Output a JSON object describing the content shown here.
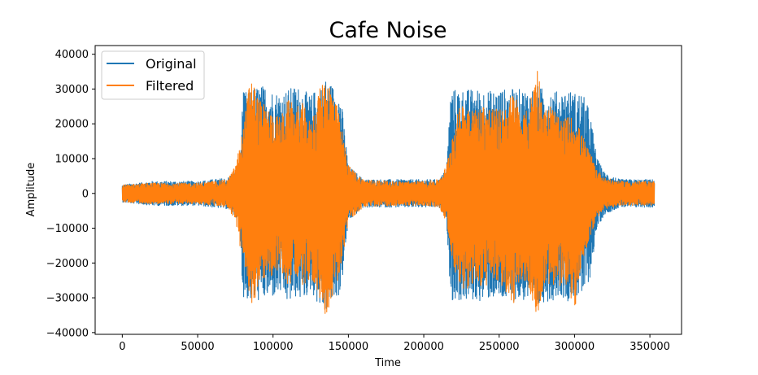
{
  "chart_data": {
    "type": "line",
    "title": "Cafe Noise",
    "xlabel": "Time",
    "ylabel": "Amplitude",
    "xlim": [
      -18000,
      371000
    ],
    "ylim": [
      -40500,
      42500
    ],
    "x_ticks": [
      0,
      50000,
      100000,
      150000,
      200000,
      250000,
      300000,
      350000
    ],
    "x_tick_labels": [
      "0",
      "50000",
      "100000",
      "150000",
      "200000",
      "250000",
      "300000",
      "350000"
    ],
    "y_ticks": [
      -40000,
      -30000,
      -20000,
      -10000,
      0,
      10000,
      20000,
      30000,
      40000
    ],
    "y_tick_labels": [
      "−40000",
      "−30000",
      "−20000",
      "−10000",
      "0",
      "10000",
      "20000",
      "30000",
      "40000"
    ],
    "grid": false,
    "legend_position": "top-left",
    "x_range": [
      0,
      353000
    ],
    "series": [
      {
        "name": "Original",
        "color": "#1f77b4",
        "envelope": {
          "x": [
            0,
            20000,
            50000,
            70000,
            78000,
            80000,
            85000,
            90000,
            95000,
            100000,
            105000,
            110000,
            115000,
            120000,
            125000,
            130000,
            135000,
            140000,
            145000,
            150000,
            160000,
            180000,
            200000,
            210000,
            215000,
            218000,
            222000,
            228000,
            235000,
            240000,
            245000,
            250000,
            255000,
            260000,
            265000,
            270000,
            275000,
            280000,
            285000,
            290000,
            295000,
            300000,
            305000,
            310000,
            315000,
            320000,
            330000,
            353000
          ],
          "upper": [
            2500,
            3500,
            3500,
            4500,
            8000,
            29000,
            30000,
            31000,
            31000,
            29500,
            29000,
            30000,
            31000,
            30000,
            28000,
            31000,
            33000,
            31000,
            28000,
            8000,
            4000,
            4000,
            4000,
            4000,
            7000,
            30000,
            30000,
            30000,
            30000,
            30000,
            29500,
            30000,
            30000,
            30000,
            30000,
            30000,
            31000,
            30000,
            30000,
            29000,
            30000,
            29000,
            29000,
            24000,
            10000,
            6000,
            4000,
            4000
          ],
          "lower": [
            -2500,
            -3500,
            -3500,
            -4500,
            -8000,
            -30000,
            -31000,
            -31000,
            -30500,
            -30000,
            -29000,
            -32000,
            -30000,
            -31000,
            -28000,
            -32000,
            -34000,
            -31000,
            -29000,
            -8000,
            -4000,
            -4000,
            -4000,
            -4000,
            -7000,
            -31000,
            -31000,
            -31000,
            -31000,
            -31000,
            -30000,
            -31000,
            -31000,
            -31000,
            -31000,
            -31000,
            -34000,
            -31000,
            -31000,
            -29000,
            -31000,
            -30000,
            -30000,
            -25000,
            -10000,
            -6000,
            -4000,
            -4000
          ]
        }
      },
      {
        "name": "Filtered",
        "color": "#ff7f0e",
        "envelope": {
          "x": [
            0,
            20000,
            50000,
            70000,
            75000,
            80000,
            85000,
            90000,
            95000,
            100000,
            105000,
            110000,
            115000,
            120000,
            125000,
            130000,
            135000,
            140000,
            145000,
            150000,
            160000,
            180000,
            200000,
            210000,
            215000,
            220000,
            225000,
            230000,
            235000,
            240000,
            245000,
            250000,
            255000,
            260000,
            265000,
            270000,
            275000,
            280000,
            285000,
            290000,
            295000,
            300000,
            305000,
            310000,
            315000,
            320000,
            330000,
            353000
          ],
          "upper": [
            2500,
            3000,
            3000,
            4000,
            8000,
            18000,
            35000,
            28000,
            25000,
            23000,
            22000,
            27000,
            25000,
            26000,
            20000,
            29000,
            34000,
            30000,
            20000,
            8000,
            4000,
            3500,
            3500,
            4000,
            8000,
            20000,
            26000,
            27000,
            24000,
            26000,
            25000,
            24000,
            26000,
            30000,
            22000,
            25000,
            38000,
            24000,
            26000,
            21000,
            22000,
            22000,
            17000,
            12000,
            7000,
            4500,
            3500,
            3500
          ],
          "lower": [
            -2500,
            -3000,
            -3000,
            -4000,
            -8000,
            -20000,
            -33000,
            -28000,
            -24000,
            -24000,
            -22000,
            -27000,
            -23000,
            -28000,
            -24000,
            -30000,
            -35000,
            -30000,
            -22000,
            -8000,
            -4000,
            -3500,
            -3500,
            -4000,
            -8000,
            -22000,
            -27000,
            -28000,
            -27000,
            -27000,
            -26000,
            -26000,
            -29000,
            -32000,
            -24000,
            -28000,
            -37000,
            -26000,
            -27000,
            -28000,
            -26000,
            -34000,
            -20000,
            -13000,
            -7000,
            -4500,
            -3500,
            -3500
          ]
        }
      }
    ]
  }
}
